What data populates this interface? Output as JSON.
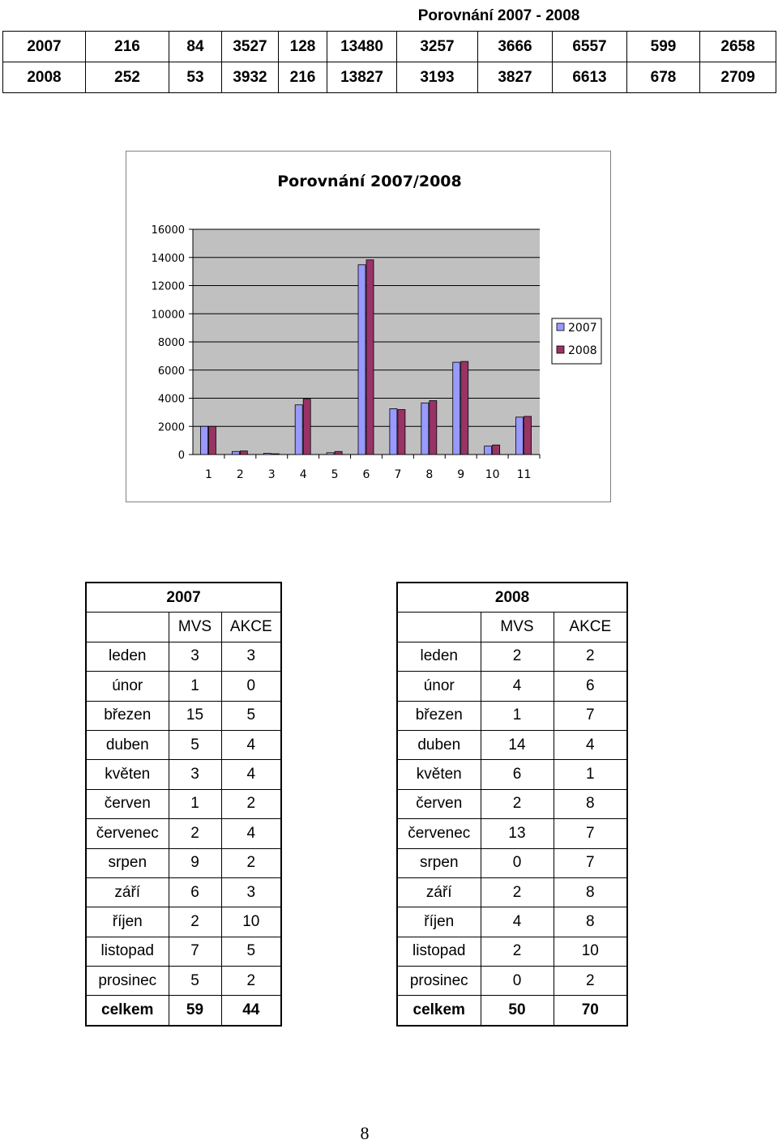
{
  "summary": {
    "title": "Porovnání  2007 - 2008",
    "rows": [
      {
        "year": "2007",
        "values": [
          "216",
          "84",
          "3527",
          "128",
          "13480",
          "3257",
          "3666",
          "6557",
          "599",
          "2658"
        ]
      },
      {
        "year": "2008",
        "values": [
          "252",
          "53",
          "3932",
          "216",
          "13827",
          "3193",
          "3827",
          "6613",
          "678",
          "2709"
        ]
      }
    ]
  },
  "chart_data": {
    "type": "bar",
    "title": "Porovnání 2007/2008",
    "categories": [
      "1",
      "2",
      "3",
      "4",
      "5",
      "6",
      "7",
      "8",
      "9",
      "10",
      "11"
    ],
    "series": [
      {
        "name": "2007",
        "color": "#9999ff",
        "values": [
          2000,
          216,
          84,
          3527,
          128,
          13480,
          3257,
          3666,
          6557,
          599,
          2658
        ]
      },
      {
        "name": "2008",
        "color": "#993366",
        "values": [
          2000,
          252,
          53,
          3932,
          216,
          13827,
          3193,
          3827,
          6613,
          678,
          2709
        ]
      }
    ],
    "yticks": [
      "0",
      "2000",
      "4000",
      "6000",
      "8000",
      "10000",
      "12000",
      "14000",
      "16000"
    ],
    "ylim": [
      0,
      16000
    ],
    "grid": true,
    "legend": "right",
    "plot_background": "#c0c0c0"
  },
  "tables": [
    {
      "year": "2007",
      "headers": [
        "MVS",
        "AKCE"
      ],
      "rows": [
        [
          "leden",
          "3",
          "3"
        ],
        [
          "únor",
          "1",
          "0"
        ],
        [
          "březen",
          "15",
          "5"
        ],
        [
          "duben",
          "5",
          "4"
        ],
        [
          "květen",
          "3",
          "4"
        ],
        [
          "červen",
          "1",
          "2"
        ],
        [
          "červenec",
          "2",
          "4"
        ],
        [
          "srpen",
          "9",
          "2"
        ],
        [
          "září",
          "6",
          "3"
        ],
        [
          "říjen",
          "2",
          "10"
        ],
        [
          "listopad",
          "7",
          "5"
        ],
        [
          "prosinec",
          "5",
          "2"
        ]
      ],
      "total": [
        "celkem",
        "59",
        "44"
      ]
    },
    {
      "year": "2008",
      "headers": [
        "MVS",
        "AKCE"
      ],
      "rows": [
        [
          "leden",
          "2",
          "2"
        ],
        [
          "únor",
          "4",
          "6"
        ],
        [
          "březen",
          "1",
          "7"
        ],
        [
          "duben",
          "14",
          "4"
        ],
        [
          "květen",
          "6",
          "1"
        ],
        [
          "červen",
          "2",
          "8"
        ],
        [
          "červenec",
          "13",
          "7"
        ],
        [
          "srpen",
          "0",
          "7"
        ],
        [
          "září",
          "2",
          "8"
        ],
        [
          "říjen",
          "4",
          "8"
        ],
        [
          "listopad",
          "2",
          "10"
        ],
        [
          "prosinec",
          "0",
          "2"
        ]
      ],
      "total": [
        "celkem",
        "50",
        "70"
      ]
    }
  ],
  "page_number": "8"
}
